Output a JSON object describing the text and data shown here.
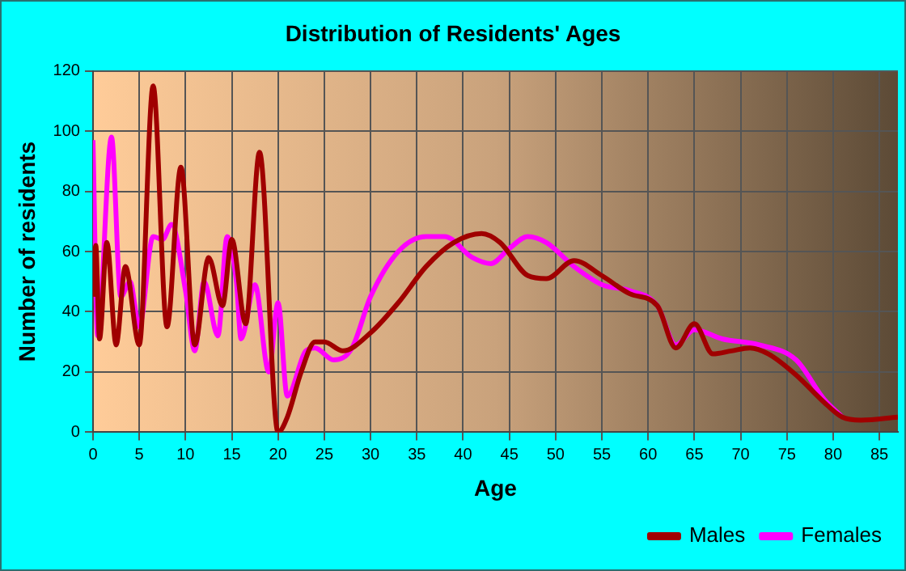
{
  "chart_data": {
    "type": "line",
    "title": "Distribution of Residents' Ages",
    "xlabel": "Age",
    "ylabel": "Number of residents",
    "xlim": [
      0,
      87
    ],
    "xticks": [
      0,
      5,
      10,
      15,
      20,
      25,
      30,
      35,
      40,
      45,
      50,
      55,
      60,
      65,
      70,
      75,
      80,
      85
    ],
    "ylim": [
      0,
      120
    ],
    "yticks": [
      0,
      20,
      40,
      60,
      80,
      100,
      120
    ],
    "grid": true,
    "legend": "bottom right",
    "marker": "none",
    "line_style": "solid",
    "series": [
      {
        "name": "Males",
        "color": "#a00000",
        "x": [
          0,
          0.3,
          0.7,
          1.5,
          2.5,
          3.5,
          5,
          6.5,
          8,
          9.5,
          11,
          12.5,
          14,
          15,
          16.5,
          18,
          20,
          21,
          22.5,
          24,
          25,
          27,
          30,
          33,
          36,
          39,
          42,
          44,
          47,
          49,
          52,
          55,
          58,
          61,
          63,
          65,
          67,
          69,
          71,
          73,
          76,
          79,
          81,
          83,
          87
        ],
        "values": [
          45,
          62,
          31,
          63,
          29,
          55,
          29,
          115,
          35,
          88,
          29,
          58,
          42,
          64,
          36,
          93,
          0,
          5,
          20,
          30,
          30,
          27,
          33,
          43,
          55,
          63,
          66,
          63,
          52,
          51,
          57,
          52,
          46,
          42,
          28,
          36,
          26,
          27,
          28,
          26,
          19,
          10,
          5,
          4,
          5
        ]
      },
      {
        "name": "Females",
        "color": "#ff00ff",
        "x": [
          0,
          0.5,
          2,
          3,
          4,
          5,
          6.5,
          7.5,
          8.5,
          10,
          11,
          12,
          13.5,
          14.5,
          15.5,
          16,
          17.5,
          19,
          20,
          21,
          23,
          24,
          26,
          28,
          30,
          33,
          36,
          38,
          41,
          43,
          45,
          47,
          49,
          52,
          55,
          58,
          61,
          63,
          65,
          68,
          72,
          76,
          79,
          81
        ],
        "values": [
          97,
          32,
          98,
          45,
          50,
          35,
          65,
          64,
          69,
          47,
          27,
          50,
          32,
          65,
          50,
          31,
          49,
          20,
          43,
          12,
          27,
          28,
          24,
          28,
          45,
          60,
          65,
          65,
          58,
          56,
          61,
          65,
          63,
          55,
          49,
          47,
          42,
          29,
          34,
          31,
          29,
          24,
          11,
          5
        ]
      }
    ]
  }
}
